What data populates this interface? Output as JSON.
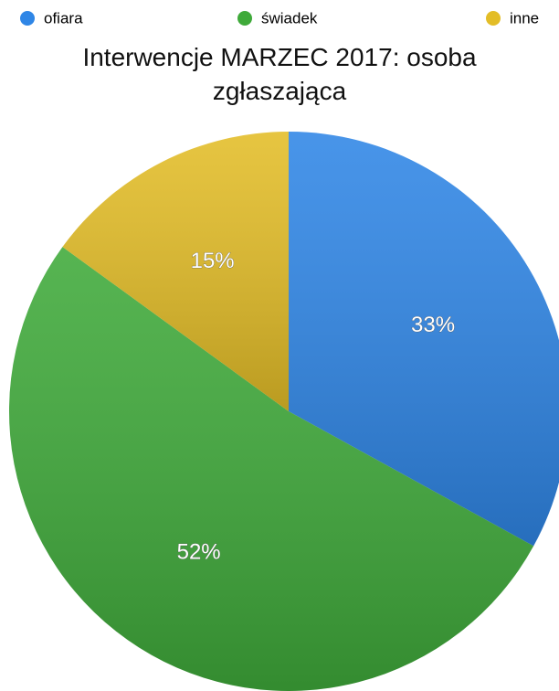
{
  "chart_data": {
    "type": "pie",
    "title": "Interwencje MARZEC 2017: osoba zgłaszająca",
    "categories": [
      "ofiara",
      "świadek",
      "inne"
    ],
    "values": [
      33,
      52,
      15
    ],
    "value_labels": [
      "33%",
      "52%",
      "15%"
    ],
    "colors": [
      "#2f86e6",
      "#3faa3a",
      "#e3bd27"
    ],
    "legend": "top"
  }
}
